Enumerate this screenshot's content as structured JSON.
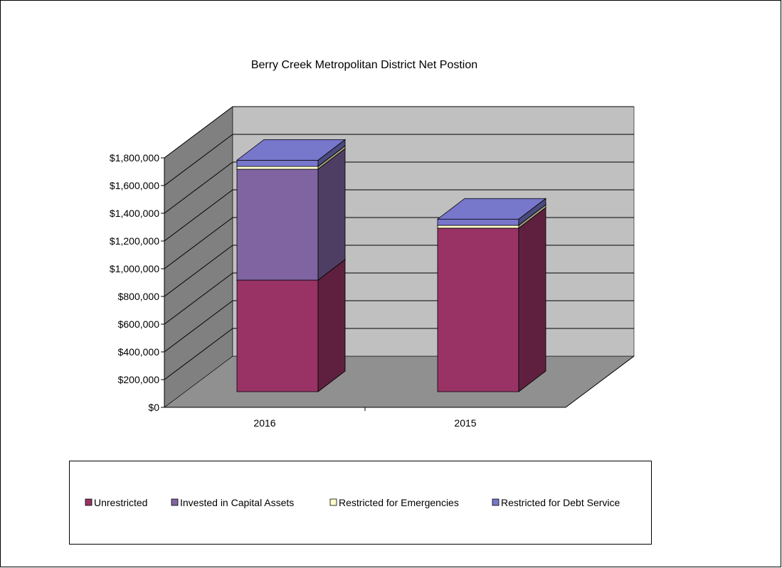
{
  "chart_data": {
    "type": "bar",
    "stacked": true,
    "three_d": true,
    "title": "Berry Creek Metropolitan  District Net Postion",
    "categories": [
      "2016",
      "2015"
    ],
    "series": [
      {
        "name": "Unrestricted",
        "values": [
          805000,
          1180000
        ],
        "color": "#993366"
      },
      {
        "name": "Invested in Capital Assets",
        "values": [
          800000,
          0
        ],
        "color": "#8064A2"
      },
      {
        "name": "Restricted for Emergencies",
        "values": [
          20000,
          20000
        ],
        "color": "#FFFFCC"
      },
      {
        "name": "Restricted for Debt Service",
        "values": [
          45000,
          45000
        ],
        "color": "#7777CC"
      }
    ],
    "y_tick_labels": [
      "$0",
      "$200,000",
      "$400,000",
      "$600,000",
      "$800,000",
      "$1,000,000",
      "$1,200,000",
      "$1,400,000",
      "$1,600,000",
      "$1,800,000"
    ],
    "ylim": [
      0,
      1800000
    ],
    "xlabel": "",
    "ylabel": "",
    "grid": true,
    "legend_position": "bottom",
    "wall_color": "#C0C0C0",
    "side_wall_color": "#808080",
    "floor_color": "#909090"
  }
}
